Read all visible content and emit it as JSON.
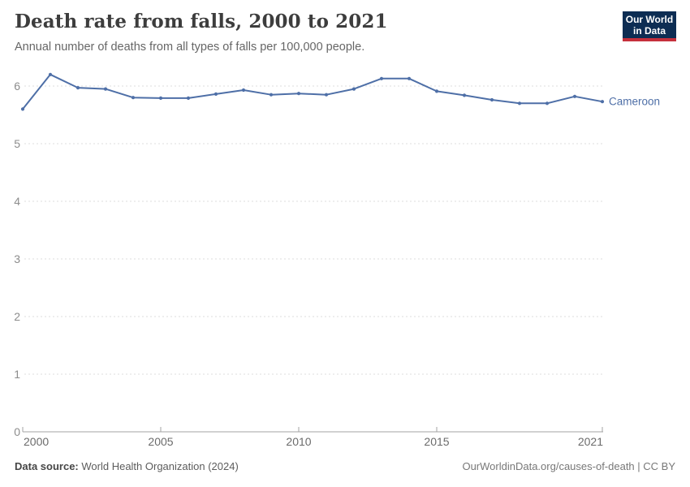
{
  "header": {
    "title": "Death rate from falls, 2000 to 2021",
    "subtitle": "Annual number of deaths from all types of falls per 100,000 people.",
    "logo": {
      "line1": "Our World",
      "line2": "in Data",
      "bg_color": "#0d2d53",
      "accent_color": "#c5303c"
    }
  },
  "chart_data": {
    "type": "line",
    "title": "Death rate from falls, 2000 to 2021",
    "xlabel": "",
    "ylabel": "",
    "x": [
      2000,
      2001,
      2002,
      2003,
      2004,
      2005,
      2006,
      2007,
      2008,
      2009,
      2010,
      2011,
      2012,
      2013,
      2014,
      2015,
      2016,
      2017,
      2018,
      2019,
      2020,
      2021
    ],
    "series": [
      {
        "name": "Cameroon",
        "color": "#4e6fa7",
        "values": [
          5.6,
          6.2,
          5.97,
          5.95,
          5.8,
          5.79,
          5.79,
          5.86,
          5.93,
          5.85,
          5.87,
          5.85,
          5.95,
          6.13,
          6.13,
          5.91,
          5.84,
          5.76,
          5.7,
          5.7,
          5.82,
          5.73
        ]
      }
    ],
    "x_ticks": [
      2000,
      2005,
      2010,
      2015,
      2021
    ],
    "y_ticks": [
      0,
      1,
      2,
      3,
      4,
      5,
      6
    ],
    "xlim": [
      2000,
      2021
    ],
    "ylim": [
      0,
      6.4
    ],
    "grid": "horizontal-dashed",
    "legend": "inline-end-label",
    "colors": {
      "gridline": "#dcdcdc",
      "axis_line": "#a3a3a3",
      "x_tick_label": "#6b6b6b",
      "y_tick_label": "#8c8c8c"
    }
  },
  "footer": {
    "source_label": "Data source:",
    "source_text": "World Health Organization (2024)",
    "credit": "OurWorldinData.org/causes-of-death | CC BY"
  }
}
